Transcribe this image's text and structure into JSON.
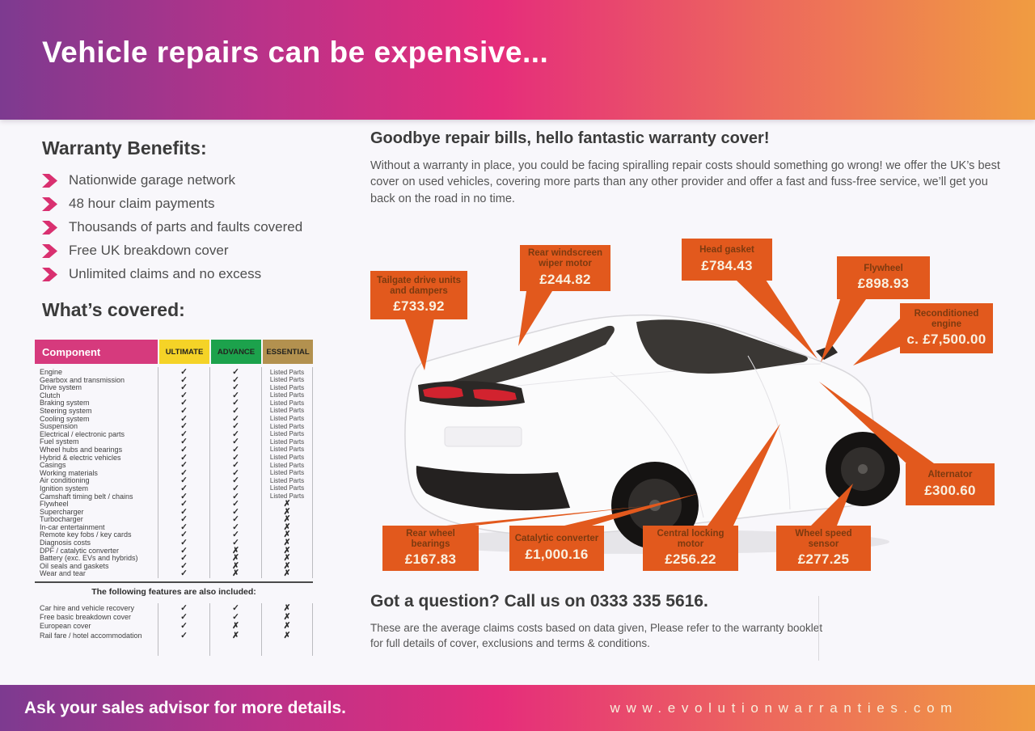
{
  "header": {
    "title": "Vehicle repairs can be expensive..."
  },
  "benefits": {
    "heading": "Warranty Benefits:",
    "items": [
      "Nationwide garage network",
      "48 hour claim payments",
      "Thousands of parts and faults covered",
      "Free UK breakdown cover",
      "Unlimited claims and no excess"
    ]
  },
  "coverage": {
    "heading": "What’s covered:",
    "columns": [
      "Component",
      "ULTIMATE",
      "ADVANCE",
      "ESSENTIAL"
    ],
    "rows": [
      [
        "Engine",
        "✓",
        "✓",
        "Listed Parts"
      ],
      [
        "Gearbox and transmission",
        "✓",
        "✓",
        "Listed Parts"
      ],
      [
        "Drive system",
        "✓",
        "✓",
        "Listed Parts"
      ],
      [
        "Clutch",
        "✓",
        "✓",
        "Listed Parts"
      ],
      [
        "Braking system",
        "✓",
        "✓",
        "Listed Parts"
      ],
      [
        "Steering system",
        "✓",
        "✓",
        "Listed Parts"
      ],
      [
        "Cooling system",
        "✓",
        "✓",
        "Listed Parts"
      ],
      [
        "Suspension",
        "✓",
        "✓",
        "Listed Parts"
      ],
      [
        "Electrical / electronic parts",
        "✓",
        "✓",
        "Listed Parts"
      ],
      [
        "Fuel system",
        "✓",
        "✓",
        "Listed Parts"
      ],
      [
        "Wheel hubs and bearings",
        "✓",
        "✓",
        "Listed Parts"
      ],
      [
        "Hybrid & electric vehicles",
        "✓",
        "✓",
        "Listed Parts"
      ],
      [
        "Casings",
        "✓",
        "✓",
        "Listed Parts"
      ],
      [
        "Working materials",
        "✓",
        "✓",
        "Listed Parts"
      ],
      [
        "Air conditioning",
        "✓",
        "✓",
        "Listed Parts"
      ],
      [
        "Ignition system",
        "✓",
        "✓",
        "Listed Parts"
      ],
      [
        "Camshaft timing belt / chains",
        "✓",
        "✓",
        "Listed Parts"
      ],
      [
        "Flywheel",
        "✓",
        "✓",
        "✗"
      ],
      [
        "Supercharger",
        "✓",
        "✓",
        "✗"
      ],
      [
        "Turbocharger",
        "✓",
        "✓",
        "✗"
      ],
      [
        "In-car entertainment",
        "✓",
        "✓",
        "✗"
      ],
      [
        "Remote key fobs / key cards",
        "✓",
        "✓",
        "✗"
      ],
      [
        "Diagnosis costs",
        "✓",
        "✓",
        "✗"
      ],
      [
        "DPF / catalytic converter",
        "✓",
        "✗",
        "✗"
      ],
      [
        "Battery (exc. EVs and hybrids)",
        "✓",
        "✗",
        "✗"
      ],
      [
        "Oil seals and gaskets",
        "✓",
        "✗",
        "✗"
      ],
      [
        "Wear and tear",
        "✓",
        "✗",
        "✗"
      ]
    ],
    "extra_heading": "The following features are also included:",
    "extra_rows": [
      [
        "Car hire and vehicle recovery",
        "✓",
        "✓",
        "✗"
      ],
      [
        "Free basic breakdown cover",
        "✓",
        "✓",
        "✗"
      ],
      [
        "European cover",
        "✓",
        "✗",
        "✗"
      ],
      [
        "Rail fare / hotel accommodation",
        "✓",
        "✗",
        "✗"
      ]
    ]
  },
  "intro": {
    "heading": "Goodbye repair bills, hello fantastic warranty cover!",
    "body": "Without a warranty in place, you could be facing spiralling repair costs should something go wrong! we offer the UK’s best cover on used vehicles, covering more parts than any other provider and offer a fast and fuss-free service, we’ll get you back on the road in no time."
  },
  "figure": {
    "callouts": [
      {
        "title": "Tailgate drive units and dampers",
        "price": "£733.92"
      },
      {
        "title": "Rear windscreen wiper motor",
        "price": "£244.82"
      },
      {
        "title": "Head gasket",
        "price": "£784.43"
      },
      {
        "title": "Flywheel",
        "price": "£898.93"
      },
      {
        "title": "Reconditioned engine",
        "price": "c. £7,500.00"
      },
      {
        "title": "Alternator",
        "price": "£300.60"
      },
      {
        "title": "Wheel speed sensor",
        "price": "£277.25"
      },
      {
        "title": "Central locking motor",
        "price": "£256.22"
      },
      {
        "title": "Catalytic converter",
        "price": "£1,000.16"
      },
      {
        "title": "Rear wheel bearings",
        "price": "£167.83"
      }
    ]
  },
  "contact": {
    "heading": "Got a question? Call us on 0333 335 5616.",
    "disclaimer": "These are the average claims costs based on data given, Please refer to the warranty booklet for full details of cover, exclusions and terms & conditions."
  },
  "footer": {
    "left": "Ask your sales advisor for more details.",
    "right": "www.evolutionwarranties.com"
  },
  "colors": {
    "accent_orange": "#e2591d",
    "header_pink": "#d63a7d",
    "ultimate_yellow": "#f5d327",
    "advance_green": "#1ca24c",
    "essential_tan": "#b3914f",
    "bullet_pink": "#d93070"
  }
}
